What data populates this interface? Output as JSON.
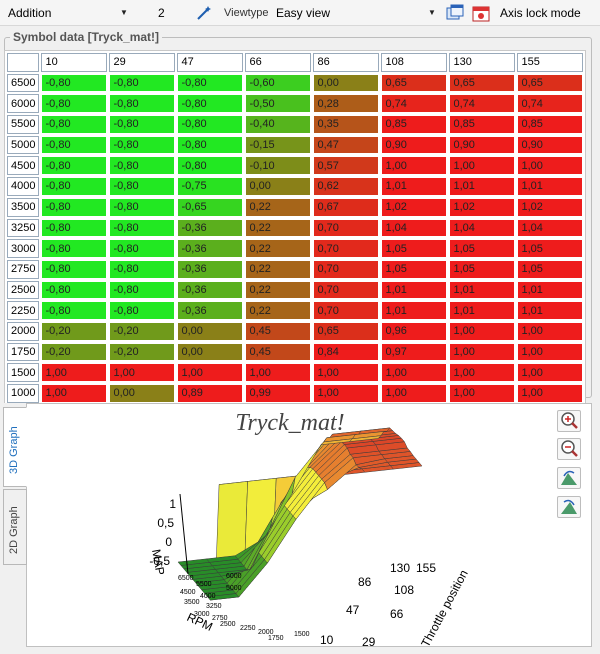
{
  "toolbar": {
    "mode_select": "Addition",
    "amount_value": "2",
    "viewtype_label": "Viewtype",
    "viewtype_select": "Easy view",
    "axis_lock_label": "Axis lock mode"
  },
  "symbol_data": {
    "title": "Symbol data [Tryck_mat!]",
    "columns": [
      "10",
      "29",
      "47",
      "66",
      "86",
      "108",
      "130",
      "155"
    ],
    "rows": [
      {
        "rpm": "6500",
        "values": [
          "-0,80",
          "-0,80",
          "-0,80",
          "-0,60",
          "0,00",
          "0,65",
          "0,65",
          "0,65"
        ]
      },
      {
        "rpm": "6000",
        "values": [
          "-0,80",
          "-0,80",
          "-0,80",
          "-0,50",
          "0,28",
          "0,74",
          "0,74",
          "0,74"
        ]
      },
      {
        "rpm": "5500",
        "values": [
          "-0,80",
          "-0,80",
          "-0,80",
          "-0,40",
          "0,35",
          "0,85",
          "0,85",
          "0,85"
        ]
      },
      {
        "rpm": "5000",
        "values": [
          "-0,80",
          "-0,80",
          "-0,80",
          "-0,15",
          "0,47",
          "0,90",
          "0,90",
          "0,90"
        ]
      },
      {
        "rpm": "4500",
        "values": [
          "-0,80",
          "-0,80",
          "-0,80",
          "-0,10",
          "0,57",
          "1,00",
          "1,00",
          "1,00"
        ]
      },
      {
        "rpm": "4000",
        "values": [
          "-0,80",
          "-0,80",
          "-0,75",
          "0,00",
          "0,62",
          "1,01",
          "1,01",
          "1,01"
        ]
      },
      {
        "rpm": "3500",
        "values": [
          "-0,80",
          "-0,80",
          "-0,65",
          "0,22",
          "0,67",
          "1,02",
          "1,02",
          "1,02"
        ]
      },
      {
        "rpm": "3250",
        "values": [
          "-0,80",
          "-0,80",
          "-0,36",
          "0,22",
          "0,70",
          "1,04",
          "1,04",
          "1,04"
        ]
      },
      {
        "rpm": "3000",
        "values": [
          "-0,80",
          "-0,80",
          "-0,36",
          "0,22",
          "0,70",
          "1,05",
          "1,05",
          "1,05"
        ]
      },
      {
        "rpm": "2750",
        "values": [
          "-0,80",
          "-0,80",
          "-0,36",
          "0,22",
          "0,70",
          "1,05",
          "1,05",
          "1,05"
        ]
      },
      {
        "rpm": "2500",
        "values": [
          "-0,80",
          "-0,80",
          "-0,36",
          "0,22",
          "0,70",
          "1,01",
          "1,01",
          "1,01"
        ]
      },
      {
        "rpm": "2250",
        "values": [
          "-0,80",
          "-0,80",
          "-0,36",
          "0,22",
          "0,70",
          "1,01",
          "1,01",
          "1,01"
        ]
      },
      {
        "rpm": "2000",
        "values": [
          "-0,20",
          "-0,20",
          "0,00",
          "0,45",
          "0,65",
          "0,96",
          "1,00",
          "1,00"
        ]
      },
      {
        "rpm": "1750",
        "values": [
          "-0,20",
          "-0,20",
          "0,00",
          "0,45",
          "0,84",
          "0,97",
          "1,00",
          "1,00"
        ]
      },
      {
        "rpm": "1500",
        "values": [
          "1,00",
          "1,00",
          "1,00",
          "1,00",
          "1,00",
          "1,00",
          "1,00",
          "1,00"
        ]
      },
      {
        "rpm": "1000",
        "values": [
          "1,00",
          "0,00",
          "0,89",
          "0,99",
          "1,00",
          "1,00",
          "1,00",
          "1,00"
        ]
      }
    ]
  },
  "graph": {
    "tabs": [
      "3D Graph",
      "2D Graph"
    ],
    "active_tab": "3D Graph",
    "title": "Tryck_mat!",
    "z_label": "MAP",
    "z_ticks": [
      "1",
      "0,5",
      "0",
      "-0,5"
    ],
    "rpm_label": "RPM",
    "rpm_ticks": [
      "6500",
      "5500",
      "4500",
      "4000",
      "3500",
      "3250",
      "3000",
      "2750",
      "2500",
      "2250",
      "2000",
      "1750",
      "6000",
      "5000",
      "1500"
    ],
    "tp_label": "Throttle position",
    "tp_ticks": [
      "155",
      "130",
      "108",
      "86",
      "66",
      "47",
      "29",
      "10"
    ]
  },
  "colors": {
    "low": "#11ee11",
    "mid": "#8a7a10",
    "high": "#ee1111"
  },
  "icons": [
    "dropdown-arrow-icon",
    "wand-icon",
    "window-icon",
    "calendar-icon",
    "zoom-in-icon",
    "zoom-out-icon",
    "rotate-left-icon",
    "rotate-right-icon"
  ]
}
